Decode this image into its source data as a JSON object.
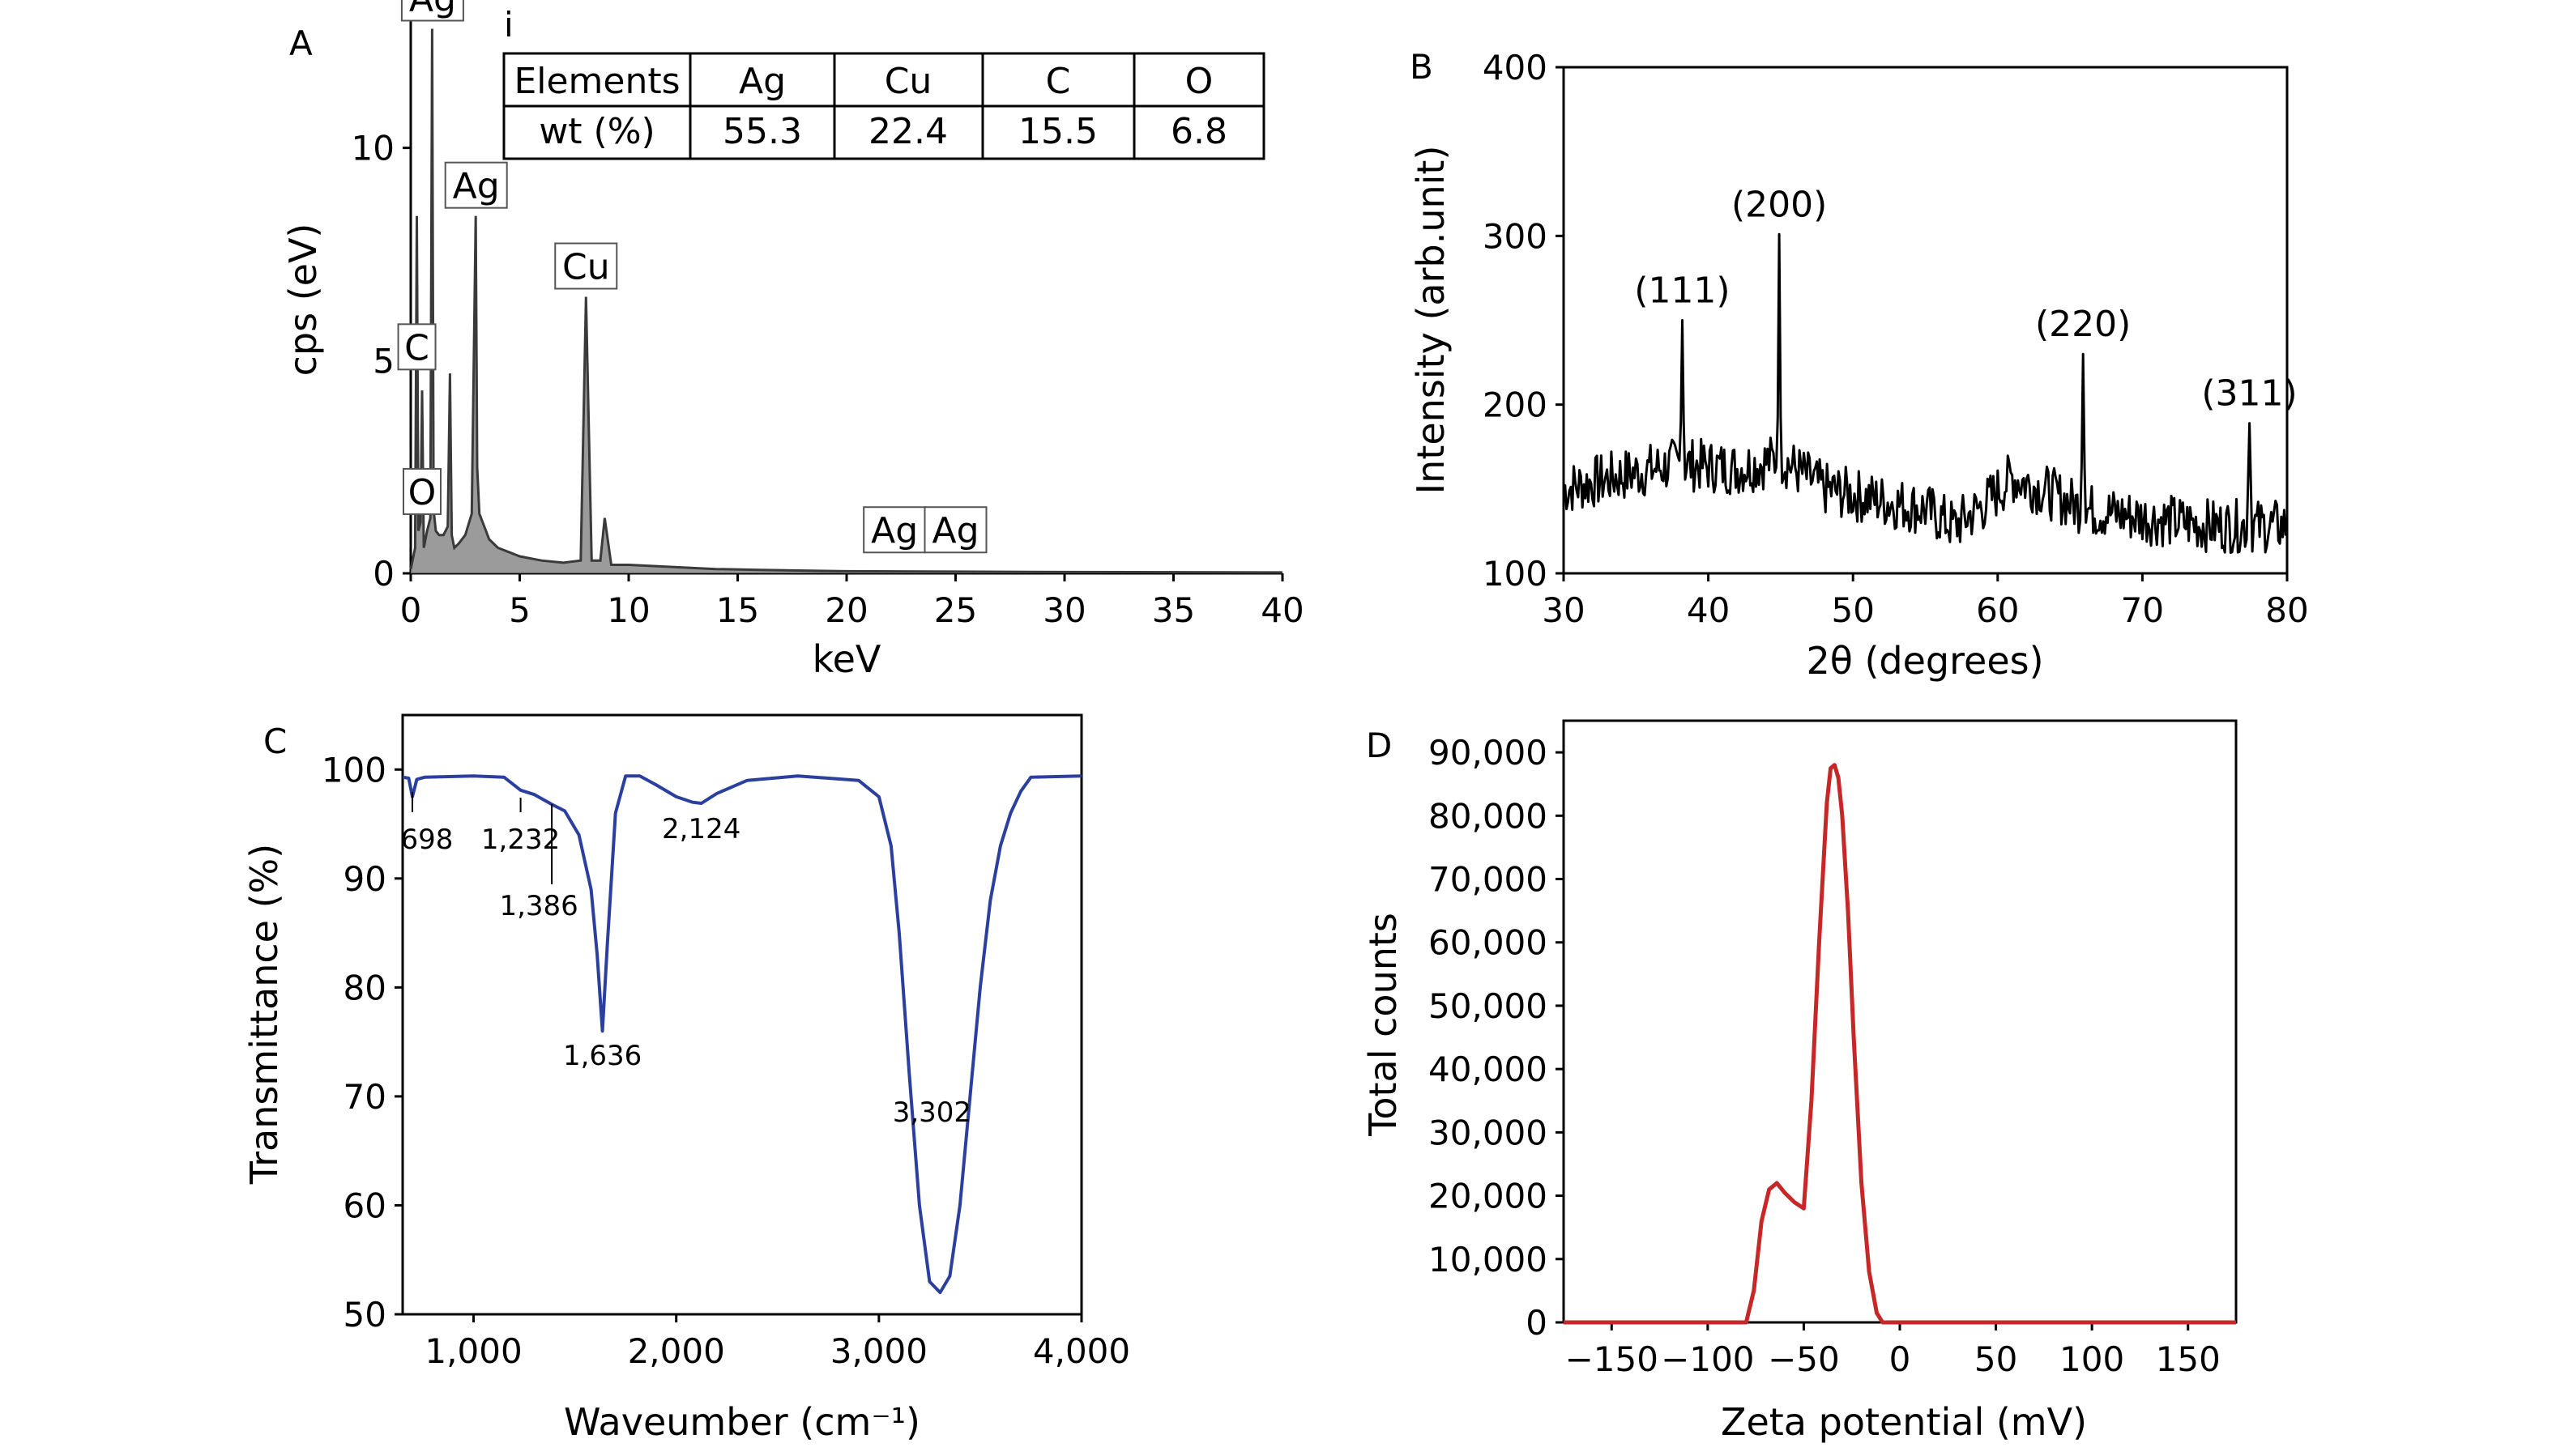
{
  "figure": {
    "panels": [
      "A",
      "B",
      "C",
      "D"
    ],
    "inset_label": "i"
  },
  "chart_data": [
    {
      "panel": "A",
      "type": "line",
      "title": "",
      "xlabel": "keV",
      "ylabel": "cps (eV)",
      "xlim": [
        0,
        40
      ],
      "ylim": [
        0,
        13
      ],
      "xticks": [
        0,
        5,
        10,
        15,
        20,
        25,
        30,
        35,
        40
      ],
      "yticks": [
        0,
        5,
        10
      ],
      "xtick_labels": [
        "0",
        "5",
        "10",
        "15",
        "20",
        "25",
        "30",
        "35",
        "40"
      ],
      "ytick_labels": [
        "0",
        "5",
        "10"
      ],
      "filled": true,
      "x": [
        0,
        0.2,
        0.28,
        0.35,
        0.45,
        0.52,
        0.6,
        0.75,
        0.9,
        0.98,
        1.05,
        1.15,
        1.3,
        1.5,
        1.7,
        1.8,
        1.88,
        2.0,
        2.2,
        2.5,
        2.8,
        2.98,
        3.05,
        3.15,
        3.3,
        3.6,
        4.0,
        4.5,
        5.0,
        6.0,
        7.0,
        7.8,
        8.04,
        8.3,
        8.7,
        8.9,
        9.2,
        10,
        12,
        14,
        16,
        20,
        25,
        30,
        40
      ],
      "values": [
        0.1,
        0.6,
        8.4,
        1.0,
        1.2,
        4.3,
        0.6,
        1.0,
        1.3,
        12.8,
        1.5,
        1.0,
        0.9,
        0.9,
        1.1,
        4.7,
        0.9,
        0.6,
        0.7,
        0.9,
        1.4,
        8.4,
        2.5,
        1.4,
        1.2,
        0.8,
        0.6,
        0.5,
        0.4,
        0.3,
        0.25,
        0.3,
        6.5,
        0.3,
        0.3,
        1.3,
        0.2,
        0.2,
        0.15,
        0.1,
        0.08,
        0.05,
        0.04,
        0.03,
        0.02
      ],
      "peak_labels": [
        {
          "text": "Ag",
          "x": 1.0,
          "y": 12.8
        },
        {
          "text": "Ag",
          "x": 3.0,
          "y": 8.4
        },
        {
          "text": "Cu",
          "x": 8.04,
          "y": 6.5
        },
        {
          "text": "C",
          "x": 0.28,
          "y": 4.6
        },
        {
          "text": "O",
          "x": 0.52,
          "y": 1.2
        },
        {
          "text": "Ag",
          "x": 22.2,
          "y": 0.3
        },
        {
          "text": "Ag",
          "x": 25.0,
          "y": 0.3
        }
      ],
      "inset_table": {
        "headers": [
          "Elements",
          "Ag",
          "Cu",
          "C",
          "O"
        ],
        "rows": [
          [
            "wt (%)",
            "55.3",
            "22.4",
            "15.5",
            "6.8"
          ]
        ]
      }
    },
    {
      "panel": "B",
      "type": "line",
      "title": "",
      "xlabel": "2θ (degrees)",
      "ylabel": "Intensity (arb.unit)",
      "xlim": [
        30,
        80
      ],
      "ylim": [
        100,
        400
      ],
      "xticks": [
        30,
        40,
        50,
        60,
        70,
        80
      ],
      "yticks": [
        100,
        200,
        300,
        400
      ],
      "xtick_labels": [
        "30",
        "40",
        "50",
        "60",
        "70",
        "80"
      ],
      "ytick_labels": [
        "100",
        "200",
        "300",
        "400"
      ],
      "baseline": [
        [
          30,
          150
        ],
        [
          34,
          158
        ],
        [
          38,
          165
        ],
        [
          42,
          162
        ],
        [
          45,
          168
        ],
        [
          48,
          150
        ],
        [
          52,
          143
        ],
        [
          55,
          138
        ],
        [
          57,
          128
        ],
        [
          59,
          140
        ],
        [
          61,
          157
        ],
        [
          63,
          150
        ],
        [
          66,
          138
        ],
        [
          70,
          133
        ],
        [
          75,
          128
        ],
        [
          80,
          128
        ]
      ],
      "peaks": [
        {
          "x": 38.2,
          "y": 250,
          "label": "(111)"
        },
        {
          "x": 44.9,
          "y": 301,
          "label": "(200)"
        },
        {
          "x": 65.9,
          "y": 230,
          "label": "(220)"
        },
        {
          "x": 77.4,
          "y": 189,
          "label": "(311)"
        }
      ]
    },
    {
      "panel": "C",
      "type": "line",
      "title": "",
      "xlabel": "Waveumber (cm⁻¹)",
      "ylabel": "Transmittance (%)",
      "xlim": [
        650,
        4000
      ],
      "ylim": [
        50,
        105
      ],
      "xticks": [
        1000,
        2000,
        3000,
        4000
      ],
      "yticks": [
        50,
        60,
        70,
        80,
        90,
        100
      ],
      "xtick_labels": [
        "1,000",
        "2,000",
        "3,000",
        "4,000"
      ],
      "ytick_labels": [
        "50",
        "60",
        "70",
        "80",
        "90",
        "100"
      ],
      "x": [
        650,
        680,
        698,
        720,
        760,
        1000,
        1150,
        1232,
        1300,
        1386,
        1450,
        1520,
        1580,
        1610,
        1636,
        1660,
        1700,
        1750,
        1820,
        1900,
        2000,
        2080,
        2124,
        2200,
        2350,
        2600,
        2900,
        3000,
        3060,
        3100,
        3150,
        3200,
        3250,
        3302,
        3350,
        3400,
        3450,
        3500,
        3550,
        3600,
        3650,
        3700,
        3750,
        4000
      ],
      "values": [
        99.3,
        99.2,
        97.5,
        99.1,
        99.3,
        99.4,
        99.3,
        98.1,
        97.7,
        96.8,
        96.2,
        94.0,
        89.0,
        83.0,
        76.0,
        84.0,
        96.0,
        99.4,
        99.4,
        98.6,
        97.5,
        97.0,
        96.9,
        97.8,
        99.0,
        99.4,
        99.0,
        97.5,
        93.0,
        85.0,
        72.0,
        60.0,
        53.0,
        52.0,
        53.5,
        60.0,
        70.0,
        80.0,
        88.0,
        93.0,
        96.0,
        98.0,
        99.3,
        99.4
      ],
      "annotations": [
        {
          "text": "698",
          "x": 698
        },
        {
          "text": "1,232",
          "x": 1232
        },
        {
          "text": "1,386",
          "x": 1386
        },
        {
          "text": "2,124",
          "x": 2124
        },
        {
          "text": "1,636",
          "x": 1636
        },
        {
          "text": "3,302",
          "x": 3302
        }
      ],
      "color": "#2b3f9e"
    },
    {
      "panel": "D",
      "type": "line",
      "title": "",
      "xlabel": "Zeta potential (mV)",
      "ylabel": "Total counts",
      "xlim": [
        -175,
        175
      ],
      "ylim": [
        0,
        95000
      ],
      "xticks": [
        -150,
        -100,
        -50,
        0,
        50,
        100,
        150
      ],
      "yticks": [
        0,
        10000,
        20000,
        30000,
        40000,
        50000,
        60000,
        70000,
        80000,
        90000
      ],
      "xtick_labels": [
        "−150",
        "−100",
        "−50",
        "0",
        "50",
        "100",
        "150"
      ],
      "ytick_labels": [
        "0",
        "10,000",
        "20,000",
        "30,000",
        "40,000",
        "50,000",
        "60,000",
        "70,000",
        "80,000",
        "90,000"
      ],
      "x": [
        -175,
        -80,
        -76,
        -72,
        -68,
        -64,
        -60,
        -55,
        -50,
        -46,
        -42,
        -38,
        -36,
        -34,
        -32,
        -30,
        -27,
        -24,
        -20,
        -16,
        -12,
        -9,
        175
      ],
      "values": [
        0,
        0,
        5000,
        16000,
        21000,
        22000,
        20500,
        19000,
        18000,
        35000,
        60000,
        82000,
        87500,
        88000,
        86000,
        80000,
        65000,
        45000,
        22000,
        8000,
        1500,
        0,
        0
      ],
      "color": "#c62828"
    }
  ]
}
